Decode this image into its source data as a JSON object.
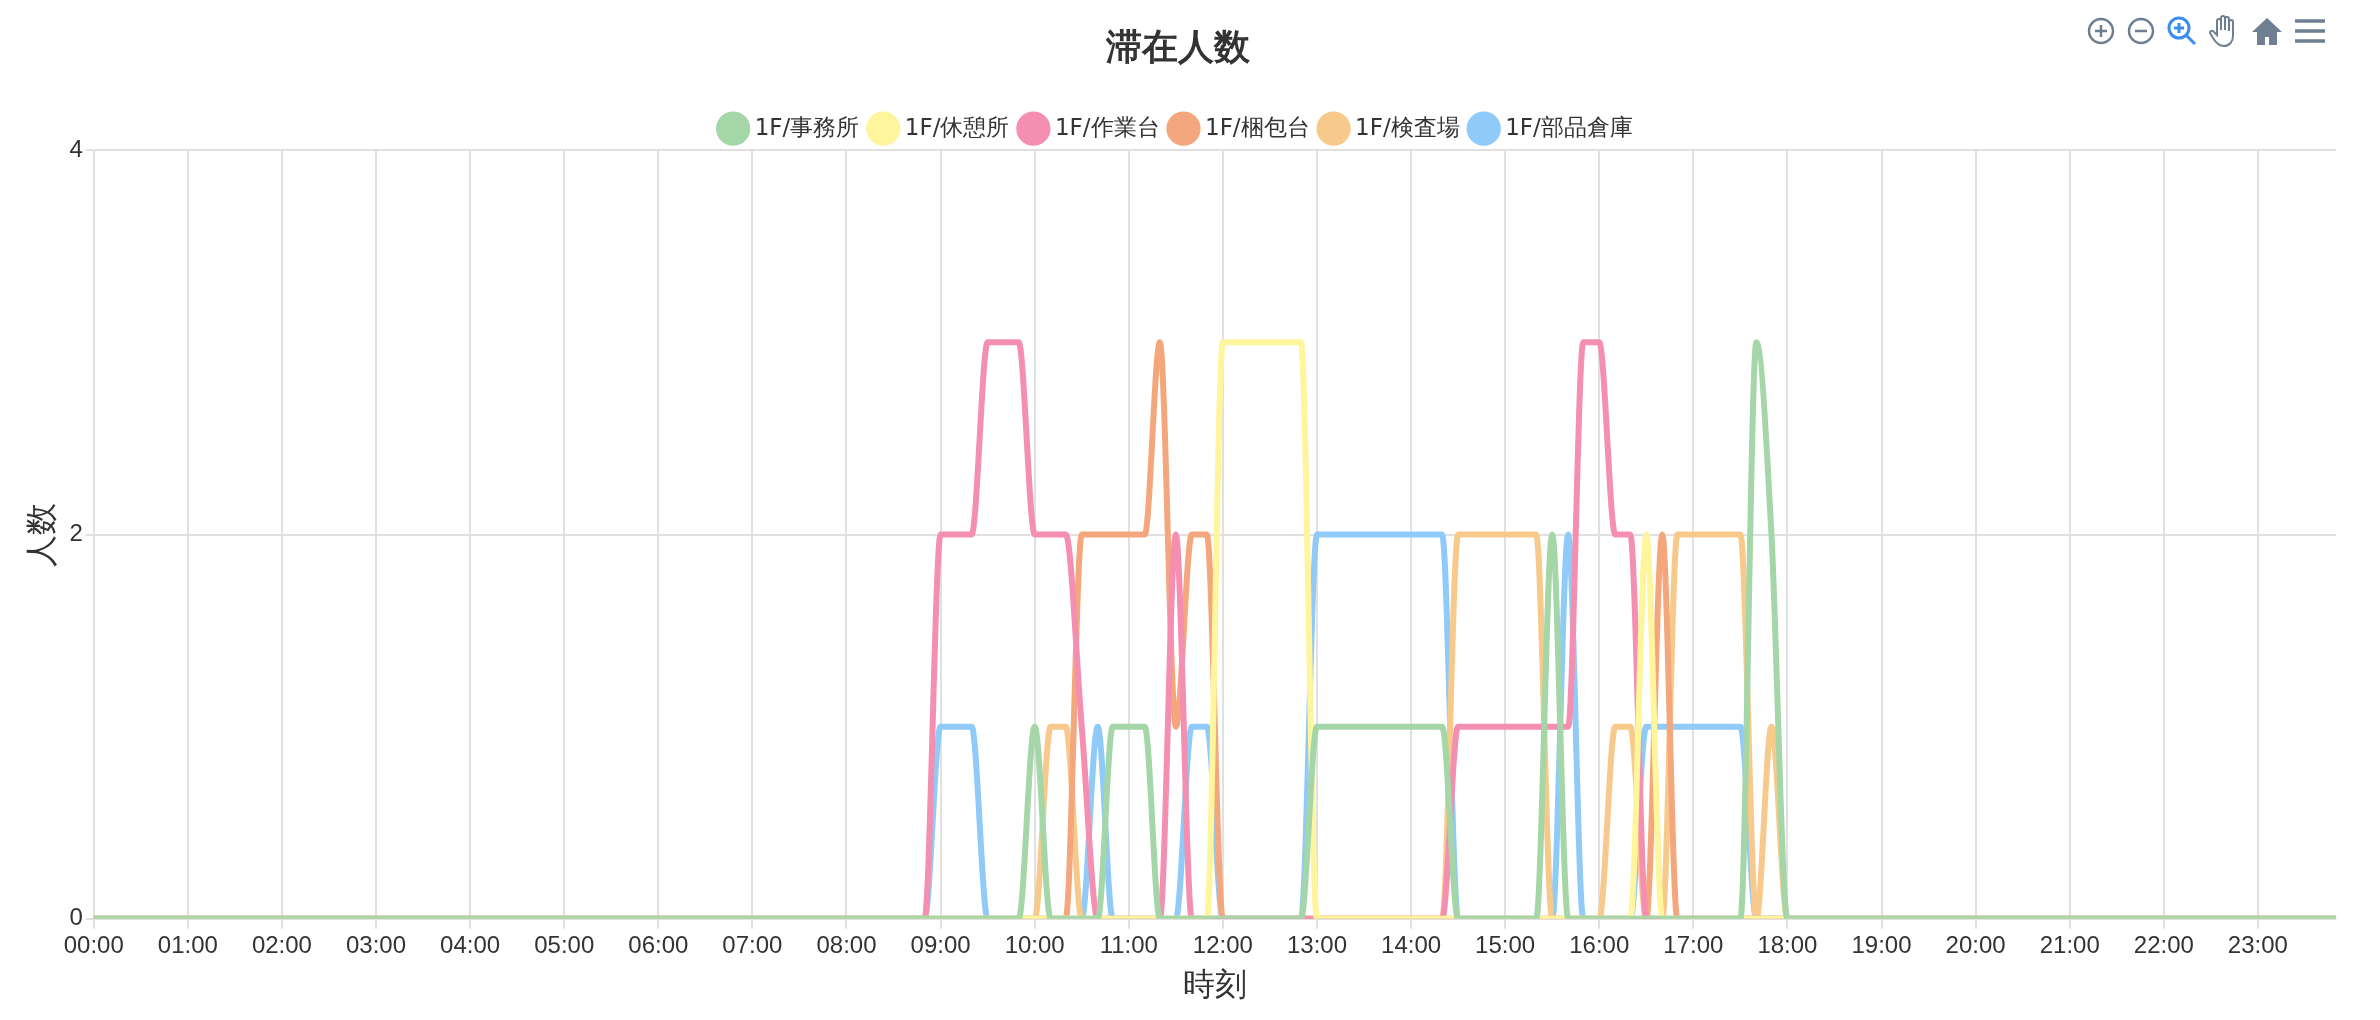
{
  "chart_data": {
    "type": "line",
    "title": "滞在人数",
    "xlabel": "時刻",
    "ylabel": "人数",
    "xlim": [
      0,
      23.83
    ],
    "xticks": [
      {
        "value": 0,
        "label": "00:00"
      },
      {
        "value": 1,
        "label": "01:00"
      },
      {
        "value": 2,
        "label": "02:00"
      },
      {
        "value": 3,
        "label": "03:00"
      },
      {
        "value": 4,
        "label": "04:00"
      },
      {
        "value": 5,
        "label": "05:00"
      },
      {
        "value": 6,
        "label": "06:00"
      },
      {
        "value": 7,
        "label": "07:00"
      },
      {
        "value": 8,
        "label": "08:00"
      },
      {
        "value": 9,
        "label": "09:00"
      },
      {
        "value": 10,
        "label": "10:00"
      },
      {
        "value": 11,
        "label": "11:00"
      },
      {
        "value": 12,
        "label": "12:00"
      },
      {
        "value": 13,
        "label": "13:00"
      },
      {
        "value": 14,
        "label": "14:00"
      },
      {
        "value": 15,
        "label": "15:00"
      },
      {
        "value": 16,
        "label": "16:00"
      },
      {
        "value": 17,
        "label": "17:00"
      },
      {
        "value": 18,
        "label": "18:00"
      },
      {
        "value": 19,
        "label": "19:00"
      },
      {
        "value": 20,
        "label": "20:00"
      },
      {
        "value": 21,
        "label": "21:00"
      },
      {
        "value": 22,
        "label": "22:00"
      },
      {
        "value": 23,
        "label": "23:00"
      }
    ],
    "ylim": [
      0,
      4
    ],
    "yticks": [
      0,
      2,
      4
    ],
    "grid": true,
    "legend": "top",
    "series": [
      {
        "name": "1F/事務所",
        "color": "#a5d6a7",
        "x": [
          0,
          9.83,
          10,
          10.17,
          10.67,
          10.83,
          11.17,
          11.33,
          12.83,
          13,
          14.33,
          14.5,
          15.33,
          15.5,
          15.67,
          17.5,
          17.67,
          17.83,
          18,
          23.83
        ],
        "values": [
          0,
          0,
          1,
          0,
          0,
          1,
          1,
          0,
          0,
          1,
          1,
          0,
          0,
          2,
          0,
          0,
          3,
          2,
          0,
          0
        ]
      },
      {
        "name": "1F/休憩所",
        "color": "#fff59d",
        "x": [
          0,
          11.83,
          12,
          12.83,
          13,
          16.33,
          16.5,
          16.67,
          23.83
        ],
        "values": [
          0,
          0,
          3,
          3,
          0,
          0,
          2,
          0,
          0
        ]
      },
      {
        "name": "1F/作業台",
        "color": "#f48fb1",
        "x": [
          0,
          8.83,
          9,
          9.33,
          9.5,
          9.83,
          10,
          10.33,
          10.5,
          10.67,
          11.33,
          11.5,
          11.67,
          14.33,
          14.5,
          15.67,
          15.83,
          16,
          16.17,
          16.33,
          16.5,
          23.83
        ],
        "values": [
          0,
          0,
          2,
          2,
          3,
          3,
          2,
          2,
          1,
          0,
          0,
          2,
          0,
          0,
          1,
          1,
          3,
          3,
          2,
          2,
          0,
          0
        ]
      },
      {
        "name": "1F/梱包台",
        "color": "#f4a77c",
        "x": [
          0,
          10.33,
          10.5,
          11.17,
          11.33,
          11.5,
          11.67,
          11.83,
          12,
          16.5,
          16.67,
          16.83,
          23.83
        ],
        "values": [
          0,
          0,
          2,
          2,
          3,
          1,
          2,
          2,
          0,
          0,
          2,
          0,
          0
        ]
      },
      {
        "name": "1F/検査場",
        "color": "#f7c98b",
        "x": [
          0,
          10,
          10.17,
          10.33,
          10.5,
          14.33,
          14.5,
          15.33,
          15.5,
          16,
          16.17,
          16.33,
          16.5,
          16.67,
          16.83,
          17.5,
          17.67,
          17.83,
          18,
          23.83
        ],
        "values": [
          0,
          0,
          1,
          1,
          0,
          0,
          2,
          2,
          0,
          0,
          1,
          1,
          0,
          0,
          2,
          2,
          0,
          1,
          0,
          0
        ]
      },
      {
        "name": "1F/部品倉庫",
        "color": "#90caf9",
        "x": [
          0,
          8.83,
          9,
          9.33,
          9.5,
          10.5,
          10.67,
          10.83,
          11.5,
          11.67,
          11.83,
          12,
          12.83,
          13,
          14.33,
          14.5,
          15.5,
          15.67,
          15.83,
          16.33,
          16.5,
          17.5,
          17.67,
          23.83
        ],
        "values": [
          0,
          0,
          1,
          1,
          0,
          0,
          1,
          0,
          0,
          1,
          1,
          0,
          0,
          2,
          2,
          0,
          0,
          2,
          0,
          0,
          1,
          1,
          0,
          0
        ]
      }
    ]
  }
}
